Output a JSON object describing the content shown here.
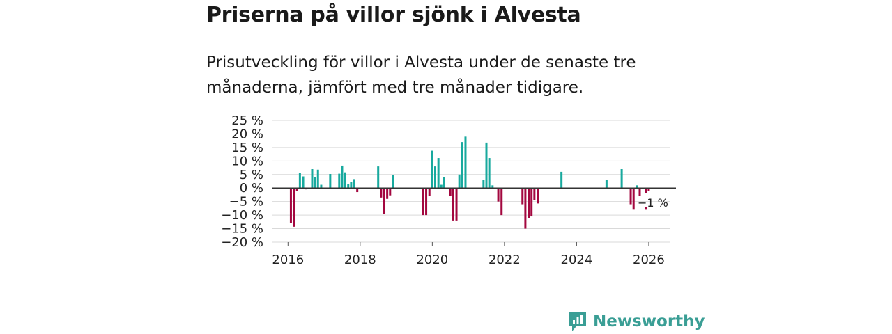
{
  "header": {
    "title": "Priserna på villor sjönk i Alvesta",
    "subtitle": "Prisutveckling för villor i Alvesta under de senaste tre månaderna, jämfört med tre månader tidigare."
  },
  "brand": {
    "name": "Newsworthy",
    "color": "#3a9e95"
  },
  "colors": {
    "positive": "#18a99e",
    "negative": "#a3073f",
    "grid": "#d9d9d9",
    "zero": "#333333"
  },
  "chart_data": {
    "type": "bar",
    "title": "Priserna på villor sjönk i Alvesta",
    "xlabel": "",
    "ylabel": "",
    "ylim": [
      -20,
      25
    ],
    "xlim": [
      2015.55,
      2026.6
    ],
    "y_ticks": [
      25,
      20,
      15,
      10,
      5,
      0,
      -5,
      -10,
      -15,
      -20
    ],
    "y_tick_labels": [
      "25 %",
      "20 %",
      "15 %",
      "10 %",
      "5 %",
      "0 %",
      "−5 %",
      "−10 %",
      "−15 %",
      "−20 %"
    ],
    "x_ticks": [
      2016,
      2018,
      2020,
      2022,
      2024,
      2026
    ],
    "x_tick_labels": [
      "2016",
      "2018",
      "2020",
      "2022",
      "2024",
      "2026"
    ],
    "end_label": "−1 %",
    "end_value": -1,
    "grid": true,
    "unit": "%",
    "series": [
      {
        "name": "Prisutveckling",
        "points": [
          {
            "x": 2016.08,
            "v": -13
          },
          {
            "x": 2016.17,
            "v": -14.3
          },
          {
            "x": 2016.25,
            "v": -1
          },
          {
            "x": 2016.33,
            "v": 5.7
          },
          {
            "x": 2016.42,
            "v": 4.3
          },
          {
            "x": 2016.5,
            "v": -0.5
          },
          {
            "x": 2016.67,
            "v": 7
          },
          {
            "x": 2016.75,
            "v": 4
          },
          {
            "x": 2016.83,
            "v": 6.8
          },
          {
            "x": 2016.92,
            "v": 1.2
          },
          {
            "x": 2017.17,
            "v": 5.2
          },
          {
            "x": 2017.42,
            "v": 5.3
          },
          {
            "x": 2017.5,
            "v": 8.3
          },
          {
            "x": 2017.58,
            "v": 5.8
          },
          {
            "x": 2017.67,
            "v": 1.5
          },
          {
            "x": 2017.75,
            "v": 2.3
          },
          {
            "x": 2017.83,
            "v": 3.3
          },
          {
            "x": 2017.92,
            "v": -1.5
          },
          {
            "x": 2018.5,
            "v": 8
          },
          {
            "x": 2018.58,
            "v": -3.5
          },
          {
            "x": 2018.67,
            "v": -9.5
          },
          {
            "x": 2018.75,
            "v": -4
          },
          {
            "x": 2018.83,
            "v": -2.7
          },
          {
            "x": 2018.92,
            "v": 4.8
          },
          {
            "x": 2019.75,
            "v": -10
          },
          {
            "x": 2019.83,
            "v": -10
          },
          {
            "x": 2019.92,
            "v": -2.8
          },
          {
            "x": 2020.0,
            "v": 13.8
          },
          {
            "x": 2020.08,
            "v": 8
          },
          {
            "x": 2020.17,
            "v": 11.1
          },
          {
            "x": 2020.25,
            "v": 1.2
          },
          {
            "x": 2020.33,
            "v": 4
          },
          {
            "x": 2020.5,
            "v": -3
          },
          {
            "x": 2020.58,
            "v": -12
          },
          {
            "x": 2020.67,
            "v": -12
          },
          {
            "x": 2020.75,
            "v": 5
          },
          {
            "x": 2020.83,
            "v": 17
          },
          {
            "x": 2020.92,
            "v": 19
          },
          {
            "x": 2021.42,
            "v": 3
          },
          {
            "x": 2021.5,
            "v": 16.8
          },
          {
            "x": 2021.58,
            "v": 11.1
          },
          {
            "x": 2021.67,
            "v": 1
          },
          {
            "x": 2021.83,
            "v": -5
          },
          {
            "x": 2021.92,
            "v": -10
          },
          {
            "x": 2022.5,
            "v": -6
          },
          {
            "x": 2022.58,
            "v": -15
          },
          {
            "x": 2022.67,
            "v": -11
          },
          {
            "x": 2022.75,
            "v": -10.5
          },
          {
            "x": 2022.83,
            "v": -4.5
          },
          {
            "x": 2022.92,
            "v": -5.7
          },
          {
            "x": 2023.58,
            "v": 6
          },
          {
            "x": 2024.83,
            "v": 3
          },
          {
            "x": 2025.25,
            "v": 7
          },
          {
            "x": 2025.5,
            "v": -6
          },
          {
            "x": 2025.58,
            "v": -8
          },
          {
            "x": 2025.67,
            "v": 1
          },
          {
            "x": 2025.75,
            "v": -3
          },
          {
            "x": 2025.92,
            "v": -2
          },
          {
            "x": 2026.0,
            "v": -1
          }
        ],
        "markers": [
          {
            "x": 2025.92,
            "v": -7.5
          }
        ]
      }
    ]
  }
}
